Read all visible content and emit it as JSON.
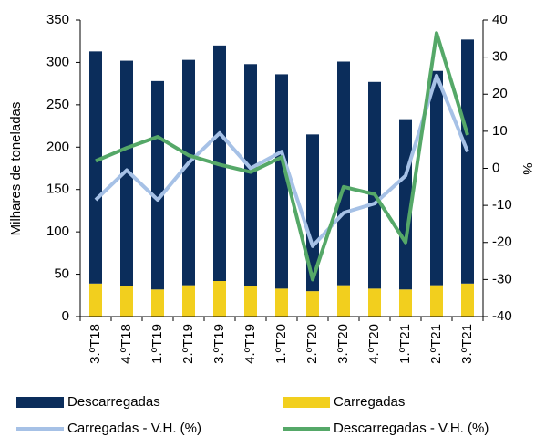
{
  "chart_data": {
    "type": "bar",
    "categories": [
      "3.ºT18",
      "4.ºT18",
      "1.ºT19",
      "2.ºT19",
      "3.ºT19",
      "4.ºT19",
      "1.ºT20",
      "2.ºT20",
      "3.ºT20",
      "4.ºT20",
      "1.ºT21",
      "2.ºT21",
      "3.ºT21"
    ],
    "y_label": "Milhares de toneladas",
    "y2_label": "%",
    "ylim": [
      0,
      350
    ],
    "yticks": [
      0,
      50,
      100,
      150,
      200,
      250,
      300,
      350
    ],
    "y2lim": [
      -40,
      40
    ],
    "y2ticks": [
      -40,
      -30,
      -20,
      -10,
      0,
      10,
      20,
      30,
      40
    ],
    "series": [
      {
        "name": "Descarregadas",
        "type": "bar",
        "color": "#0b2d5b",
        "values": [
          274,
          266,
          246,
          266,
          278,
          262,
          253,
          185,
          264,
          244,
          201,
          253,
          288
        ]
      },
      {
        "name": "Carregadas",
        "type": "bar",
        "color": "#f2cf1e",
        "values": [
          39,
          36,
          32,
          37,
          42,
          36,
          33,
          30,
          37,
          33,
          32,
          37,
          39
        ]
      },
      {
        "name": "Carregadas - V.H. (%)",
        "type": "line",
        "axis": "y2",
        "color": "#a6c1e6",
        "values": [
          -8.5,
          -0.5,
          -8.5,
          1.5,
          9.5,
          0,
          4.5,
          -21,
          -12,
          -9.5,
          -2,
          25,
          4.5
        ]
      },
      {
        "name": "Descarregadas - V.H. (%)",
        "type": "line",
        "axis": "y2",
        "color": "#55a868",
        "values": [
          2,
          5.5,
          8.5,
          3.5,
          1,
          -1,
          3,
          -30,
          -5,
          -7,
          -20,
          36.5,
          9
        ]
      }
    ]
  }
}
